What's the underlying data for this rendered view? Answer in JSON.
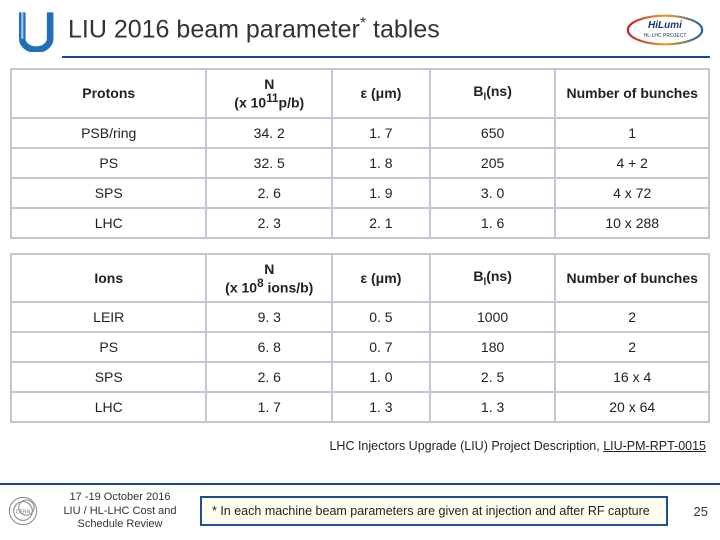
{
  "title_pre": "LIU 2016 beam parameter",
  "title_post": " tables",
  "tables": {
    "protons": {
      "headers": {
        "c1": "Protons",
        "c2_pre": "N",
        "c2_unit_pre": "(x 10",
        "c2_exp": "11",
        "c2_unit_post": "p/b)",
        "c3": "ε (μm)",
        "c4_pre": "B",
        "c4_sub": "l",
        "c4_post": "(ns)",
        "c5": "Number of bunches"
      },
      "rows": [
        {
          "c1": "PSB/ring",
          "c2": "34. 2",
          "c3": "1. 7",
          "c4": "650",
          "c5": "1"
        },
        {
          "c1": "PS",
          "c2": "32. 5",
          "c3": "1. 8",
          "c4": "205",
          "c5": "4 + 2"
        },
        {
          "c1": "SPS",
          "c2": "2. 6",
          "c3": "1. 9",
          "c4": "3. 0",
          "c5": "4 x 72"
        },
        {
          "c1": "LHC",
          "c2": "2. 3",
          "c3": "2. 1",
          "c4": "1. 6",
          "c5": "10 x 288"
        }
      ]
    },
    "ions": {
      "headers": {
        "c1": "Ions",
        "c2_pre": "N",
        "c2_unit_pre": "(x 10",
        "c2_exp": "8",
        "c2_unit_post": " ions/b)",
        "c3": "ε (μm)",
        "c4_pre": "B",
        "c4_sub": "l",
        "c4_post": "(ns)",
        "c5": "Number of bunches"
      },
      "rows": [
        {
          "c1": "LEIR",
          "c2": "9. 3",
          "c3": "0. 5",
          "c4": "1000",
          "c5": "2"
        },
        {
          "c1": "PS",
          "c2": "6. 8",
          "c3": "0. 7",
          "c4": "180",
          "c5": "2"
        },
        {
          "c1": "SPS",
          "c2": "2. 6",
          "c3": "1. 0",
          "c4": "2. 5",
          "c5": "16 x 4"
        },
        {
          "c1": "LHC",
          "c2": "1. 7",
          "c3": "1. 3",
          "c4": "1. 3",
          "c5": "20 x 64"
        }
      ]
    }
  },
  "reference": {
    "text": "LHC Injectors Upgrade (LIU) Project Description, ",
    "link": "LIU-PM-RPT-0015"
  },
  "footer": {
    "date": "17 -19 October 2016\nLIU / HL-LHC  Cost and Schedule Review",
    "note": "* In each machine beam parameters are given at injection and after RF capture",
    "page": "25"
  },
  "colors": {
    "accent": "#154a8a",
    "border": "#c0c8d4",
    "note_bg": "#fefeee",
    "note_border": "#205090"
  }
}
